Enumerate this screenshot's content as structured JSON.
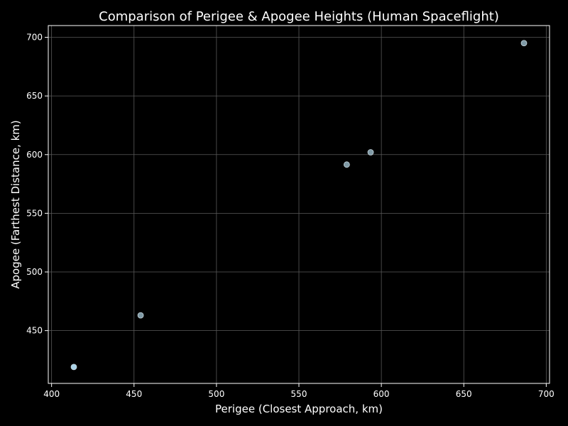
{
  "chart_data": {
    "type": "scatter",
    "title": "Comparison of Perigee & Apogee Heights (Human Spaceflight)",
    "xlabel": "Perigee (Closest Approach, km)",
    "ylabel": "Apogee (Farthest Distance, km)",
    "xlim": [
      398,
      702
    ],
    "ylim": [
      405,
      710
    ],
    "xticks": [
      400,
      450,
      500,
      550,
      600,
      650,
      700
    ],
    "yticks": [
      450,
      500,
      550,
      600,
      650,
      700
    ],
    "grid": true,
    "series": [
      {
        "x": [
          413.5,
          454,
          579,
          593.5,
          686.5
        ],
        "y": [
          419,
          463,
          591.5,
          602,
          695
        ]
      }
    ],
    "colors": {
      "background": "#000000",
      "frame": "#ffffff",
      "grid": "#5a5a5a",
      "text": "#ffffff",
      "marker_fill": "#7f9aa6",
      "marker_edge": "#c7d6dd",
      "marker_fill_highlight": "#a9d3e8"
    }
  }
}
